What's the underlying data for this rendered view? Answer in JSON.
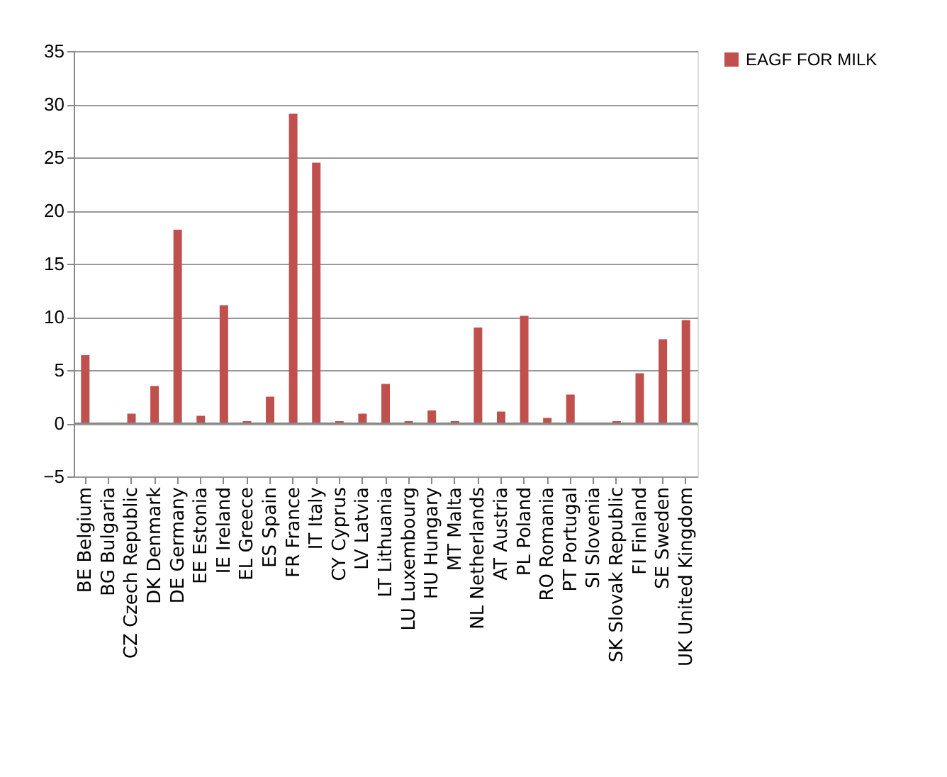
{
  "chart_data": {
    "type": "bar",
    "categories": [
      "BE Belgium",
      "BG Bulgaria",
      "CZ Czech Republic",
      "DK Denmark",
      "DE Germany",
      "EE Estonia",
      "IE Ireland",
      "EL Greece",
      "ES Spain",
      "FR France",
      "IT Italy",
      "CY Cyprus",
      "LV Latvia",
      "LT Lithuania",
      "LU Luxembourg",
      "HU Hungary",
      "MT Malta",
      "NL Netherlands",
      "AT Austria",
      "PL Poland",
      "RO Romania",
      "PT Portugal",
      "SI Slovenia",
      "SK Slovak Republic",
      "FI Finland",
      "SE Sweden",
      "UK United Kingdom"
    ],
    "series": [
      {
        "name": "EAGF FOR MILK",
        "color": "#c0504d",
        "values": [
          6.4,
          0,
          0.9,
          3.5,
          18.2,
          0.7,
          11.1,
          0.2,
          2.5,
          29.1,
          24.5,
          0.2,
          0.9,
          3.7,
          0.2,
          1.2,
          0.2,
          9.0,
          1.1,
          10.1,
          0.5,
          2.7,
          0,
          0.2,
          4.7,
          7.9,
          9.7
        ]
      }
    ],
    "ylim": [
      -5,
      35
    ],
    "yticks": [
      -5,
      0,
      5,
      10,
      15,
      20,
      25,
      30,
      35
    ],
    "grid": "y",
    "legend": "right"
  }
}
